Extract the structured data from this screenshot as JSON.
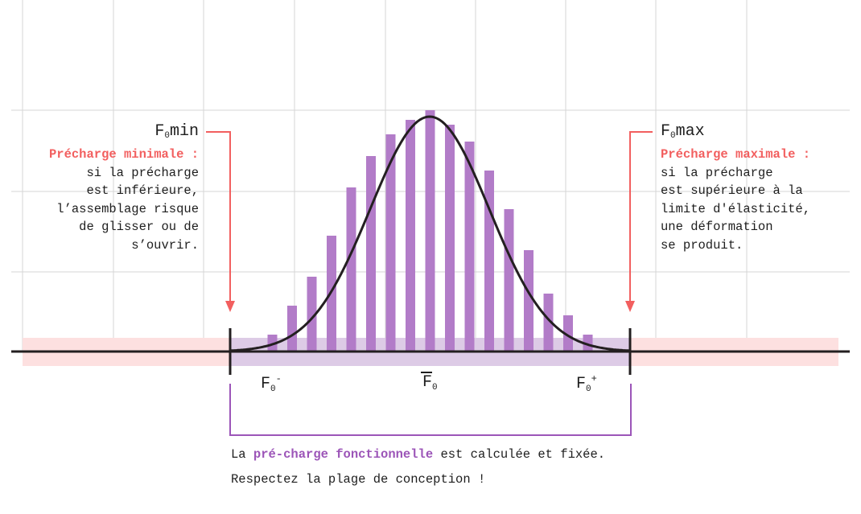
{
  "labels": {
    "f0min_base": "F",
    "f0min_sub": "0",
    "f0min_suffix": "min",
    "f0max_base": "F",
    "f0max_sub": "0",
    "f0max_suffix": "max",
    "f_minus_base": "F",
    "f_minus_sub": "0",
    "f_minus_sup": "-",
    "f_mean_base": "F",
    "f_mean_sub": "0",
    "f_plus_base": "F",
    "f_plus_sub": "0",
    "f_plus_sup": "+"
  },
  "left_note": {
    "title": "Précharge minimale :",
    "lines": [
      "si la précharge",
      "est inférieure,",
      "l’assemblage risque",
      "de glisser ou de",
      "s’ouvrir."
    ]
  },
  "right_note": {
    "title": "Précharge maximale :",
    "lines": [
      "si la précharge",
      "est supérieure à la",
      "limite d'élasticité,",
      "une déformation",
      "se produit."
    ]
  },
  "footer": {
    "line1_prefix": "La ",
    "line1_highlight": "pré-charge fonctionnelle",
    "line1_suffix": " est calculée et fixée.",
    "line2": "Respectez la plage de conception !"
  },
  "colors": {
    "bars": "#b27cc8",
    "curve": "#231f20",
    "red": "#f25f5f",
    "purple": "#9c55b8",
    "pink_band": "#fde0e0",
    "lavender_band": "#ddcbe6"
  },
  "chart_data": {
    "type": "bar",
    "values": [
      0.07,
      0.19,
      0.31,
      0.48,
      0.68,
      0.81,
      0.9,
      0.96,
      1.0,
      0.94,
      0.87,
      0.75,
      0.59,
      0.42,
      0.24,
      0.15,
      0.07
    ],
    "curve": "normal"
  }
}
